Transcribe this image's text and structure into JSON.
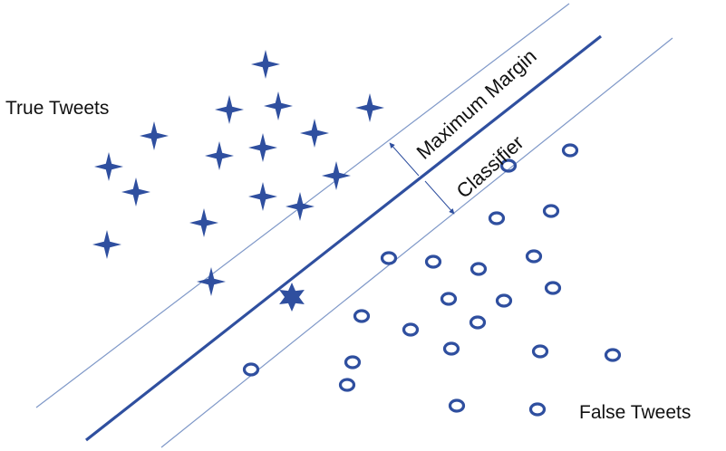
{
  "labels": {
    "true_class": "True Tweets",
    "false_class": "False Tweets",
    "margin_line1": "Maximum Margin",
    "margin_line2": "Classifier"
  },
  "colors": {
    "marker": "#2f4f9f",
    "hyperplane": "#2f4f9f",
    "margin_lines": "#7f98c8",
    "text": "#111111"
  },
  "icons": {
    "true_marker": "four-point-star-icon",
    "false_marker": "ring-icon",
    "support_marker": "six-point-star-icon"
  }
}
